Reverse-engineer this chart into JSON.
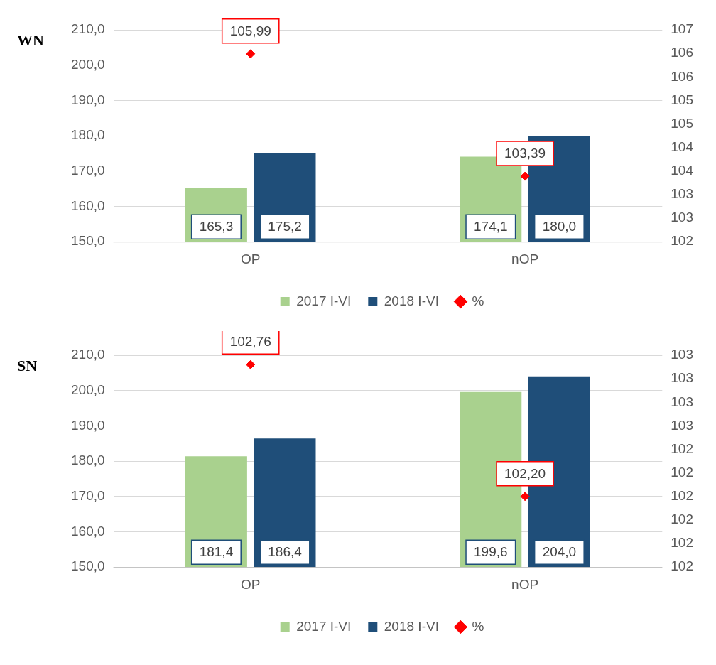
{
  "chart_data": [
    {
      "type": "bar",
      "title": "WN",
      "categories": [
        "OP",
        "nOP"
      ],
      "series": [
        {
          "name": "2017 I-VI",
          "color": "#a9d18e",
          "values": [
            165.3,
            174.1
          ],
          "value_labels": [
            "165,3",
            "174,1"
          ]
        },
        {
          "name": "2018 I-VI",
          "color": "#1f4e79",
          "values": [
            175.2,
            180.0
          ],
          "value_labels": [
            "175,2",
            "180,0"
          ]
        },
        {
          "name": "%",
          "type": "scatter",
          "axis": "y2",
          "color": "#ff0000",
          "x": [
            "OP",
            "nOP"
          ],
          "values": [
            105.99,
            103.39
          ],
          "value_labels": [
            "105,99",
            "103,39"
          ]
        }
      ],
      "ylim": [
        150,
        210
      ],
      "yticks": [
        {
          "value": 150,
          "label": "150,0"
        },
        {
          "value": 160,
          "label": "160,0"
        },
        {
          "value": 170,
          "label": "170,0"
        },
        {
          "value": 180,
          "label": "180,0"
        },
        {
          "value": 190,
          "label": "190,0"
        },
        {
          "value": 200,
          "label": "200,0"
        },
        {
          "value": 210,
          "label": "210,0"
        }
      ],
      "y2lim": [
        102,
        106.5
      ],
      "y2ticks": [
        102,
        {
          "value": 102.5,
          "label": "103"
        },
        103,
        {
          "value": 103.5,
          "label": "104"
        },
        104,
        {
          "value": 104.5,
          "label": "105"
        },
        105,
        {
          "value": 105.5,
          "label": "106"
        },
        106,
        {
          "value": 106.5,
          "label": "107"
        }
      ],
      "grid": "y",
      "legend": "bottom",
      "marker": "diamond"
    },
    {
      "type": "bar",
      "title": "SN",
      "categories": [
        "OP",
        "nOP"
      ],
      "series": [
        {
          "name": "2017 I-VI",
          "color": "#a9d18e",
          "values": [
            181.4,
            199.6
          ],
          "value_labels": [
            "181,4",
            "199,6"
          ]
        },
        {
          "name": "2018 I-VI",
          "color": "#1f4e79",
          "values": [
            186.4,
            204.0
          ],
          "value_labels": [
            "186,4",
            "204,0"
          ]
        },
        {
          "name": "%",
          "type": "scatter",
          "axis": "y2",
          "color": "#ff0000",
          "x": [
            "OP",
            "nOP"
          ],
          "values": [
            102.76,
            102.2
          ],
          "value_labels": [
            "102,76",
            "102,20"
          ]
        }
      ],
      "ylim": [
        150,
        210
      ],
      "yticks": [
        {
          "value": 150,
          "label": "150,0"
        },
        {
          "value": 160,
          "label": "160,0"
        },
        {
          "value": 170,
          "label": "170,0"
        },
        {
          "value": 180,
          "label": "180,0"
        },
        {
          "value": 190,
          "label": "190,0"
        },
        {
          "value": 200,
          "label": "200,0"
        },
        {
          "value": 210,
          "label": "210,0"
        }
      ],
      "y2lim": [
        101.9,
        102.8
      ],
      "y2ticks": [
        {
          "value": 101.9,
          "label": "102"
        },
        102,
        {
          "value": 102.1,
          "label": "102"
        },
        {
          "value": 102.2,
          "label": "102"
        },
        {
          "value": 102.3,
          "label": "102"
        },
        {
          "value": 102.4,
          "label": "102"
        },
        {
          "value": 102.5,
          "label": "103"
        },
        {
          "value": 102.6,
          "label": "103"
        },
        {
          "value": 102.7,
          "label": "103"
        },
        {
          "value": 102.8,
          "label": "103"
        }
      ],
      "grid": "y",
      "legend": "bottom",
      "marker": "diamond"
    }
  ]
}
